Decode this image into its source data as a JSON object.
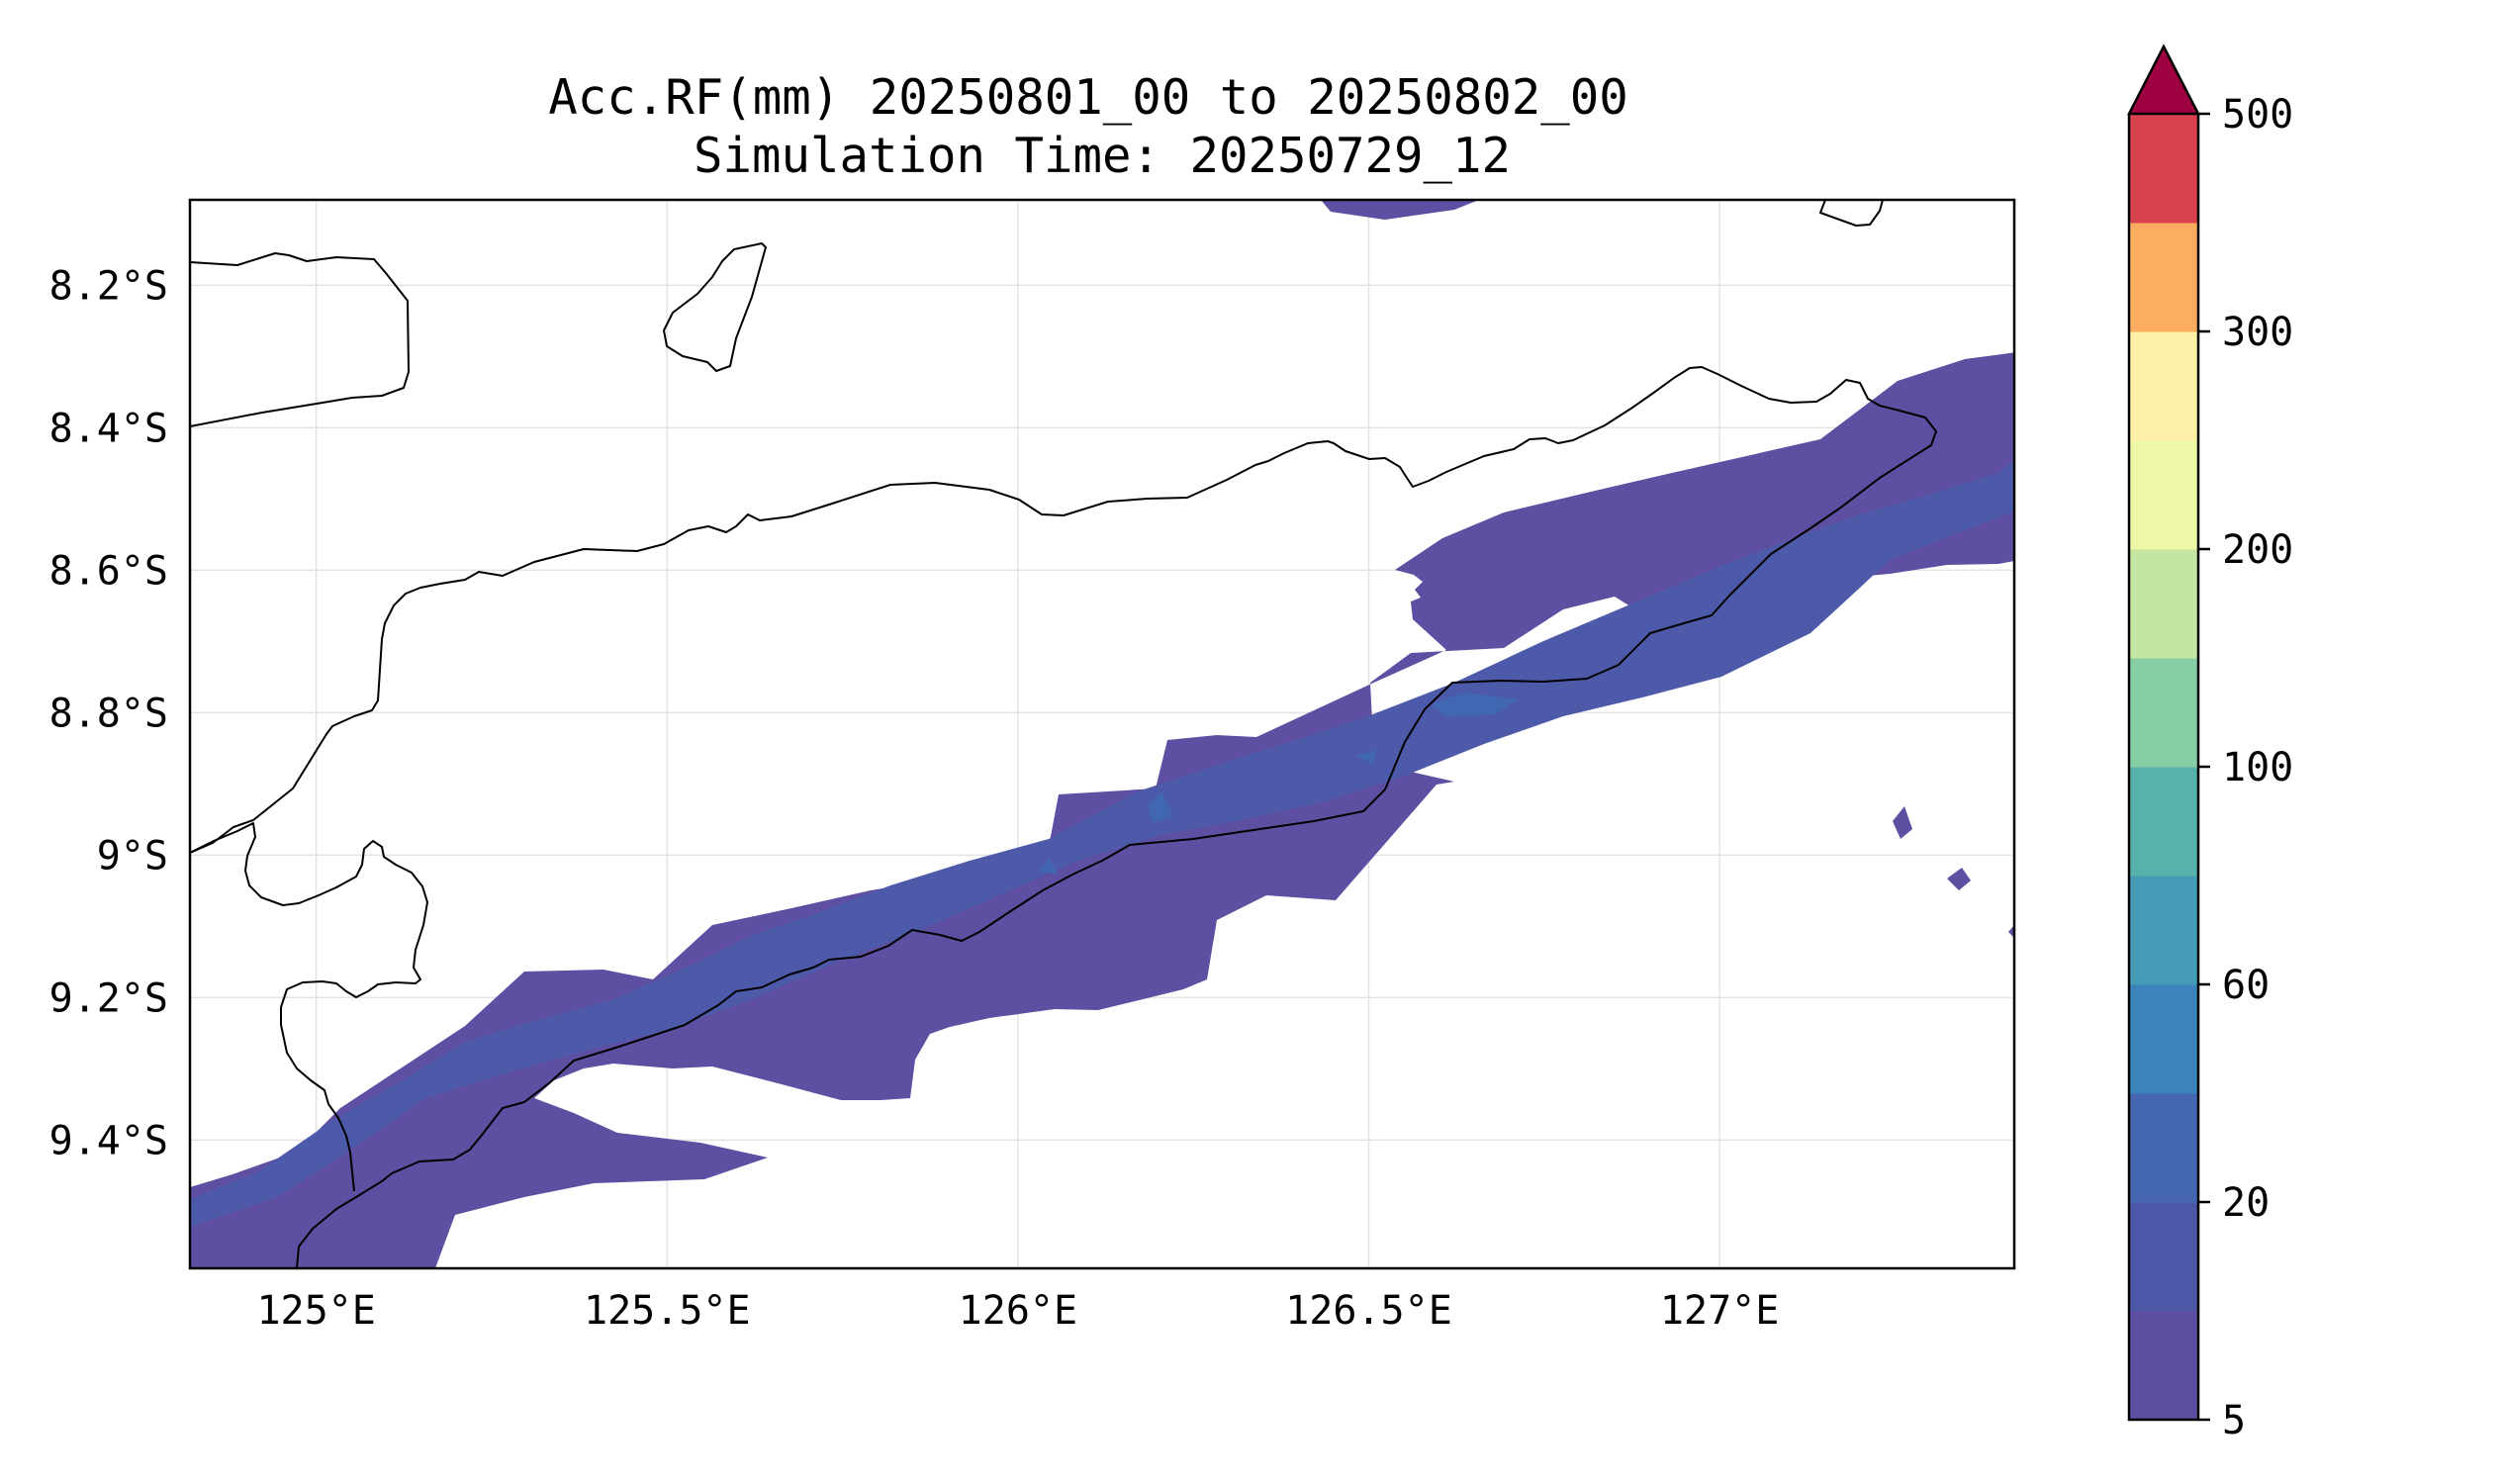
{
  "title": {
    "line1": "Acc.RF(mm) 20250801_00 to 20250802_00",
    "line2": "Simulation Time: 20250729_12"
  },
  "map": {
    "lon_range": [
      124.82,
      127.42
    ],
    "lat_range": [
      -9.58,
      -8.08
    ],
    "lon_ticks": [
      {
        "value": 125.0,
        "label": "125°E"
      },
      {
        "value": 125.5,
        "label": "125.5°E"
      },
      {
        "value": 126.0,
        "label": "126°E"
      },
      {
        "value": 126.5,
        "label": "126.5°E"
      },
      {
        "value": 127.0,
        "label": "127°E"
      }
    ],
    "lat_ticks": [
      {
        "value": -8.2,
        "label": "8.2°S"
      },
      {
        "value": -8.4,
        "label": "8.4°S"
      },
      {
        "value": -8.6,
        "label": "8.6°S"
      },
      {
        "value": -8.8,
        "label": "8.8°S"
      },
      {
        "value": -9.0,
        "label": "9°S"
      },
      {
        "value": -9.2,
        "label": "9.2°S"
      },
      {
        "value": -9.4,
        "label": "9.4°S"
      }
    ],
    "grid": true,
    "rain_colors": {
      "level1": "#5e4fa2",
      "level2": "#4d5aa9",
      "level3": "#4267b2"
    },
    "coastline_color": "#000000"
  },
  "colorbar": {
    "extend": "max",
    "extend_color": "#9e0142",
    "levels": [
      {
        "color": "#5e4fa2"
      },
      {
        "color": "#4e58a8"
      },
      {
        "color": "#4567b2"
      },
      {
        "color": "#3a84bb"
      },
      {
        "color": "#439bb5"
      },
      {
        "color": "#57b2ab"
      },
      {
        "color": "#86cfa5"
      },
      {
        "color": "#c3e6a0"
      },
      {
        "color": "#eef7a6"
      },
      {
        "color": "#fff0a8"
      },
      {
        "color": "#fdad60"
      },
      {
        "color": "#d8434e"
      }
    ],
    "tick_labels": [
      "5",
      "20",
      "60",
      "100",
      "200",
      "300",
      "500"
    ]
  }
}
